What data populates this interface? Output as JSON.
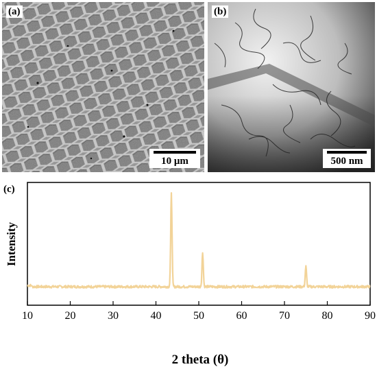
{
  "panels": {
    "a": {
      "label": "(a)",
      "scalebar": "10 μm"
    },
    "b": {
      "label": "(b)",
      "scalebar": "500 nm"
    },
    "c": {
      "label": "(c)"
    }
  },
  "chart_data": {
    "type": "line",
    "xlabel": "2 theta (θ)",
    "ylabel": "Intensity",
    "xlim": [
      10,
      90
    ],
    "xticks": [
      10,
      20,
      30,
      40,
      50,
      60,
      70,
      80,
      90
    ],
    "y_ticks_shown": false,
    "grid": false,
    "line_color": "#f2d398",
    "baseline": 0.06,
    "peaks": [
      {
        "x": 43.6,
        "y": 1.0
      },
      {
        "x": 50.9,
        "y": 0.4
      },
      {
        "x": 75.0,
        "y": 0.26
      }
    ]
  }
}
